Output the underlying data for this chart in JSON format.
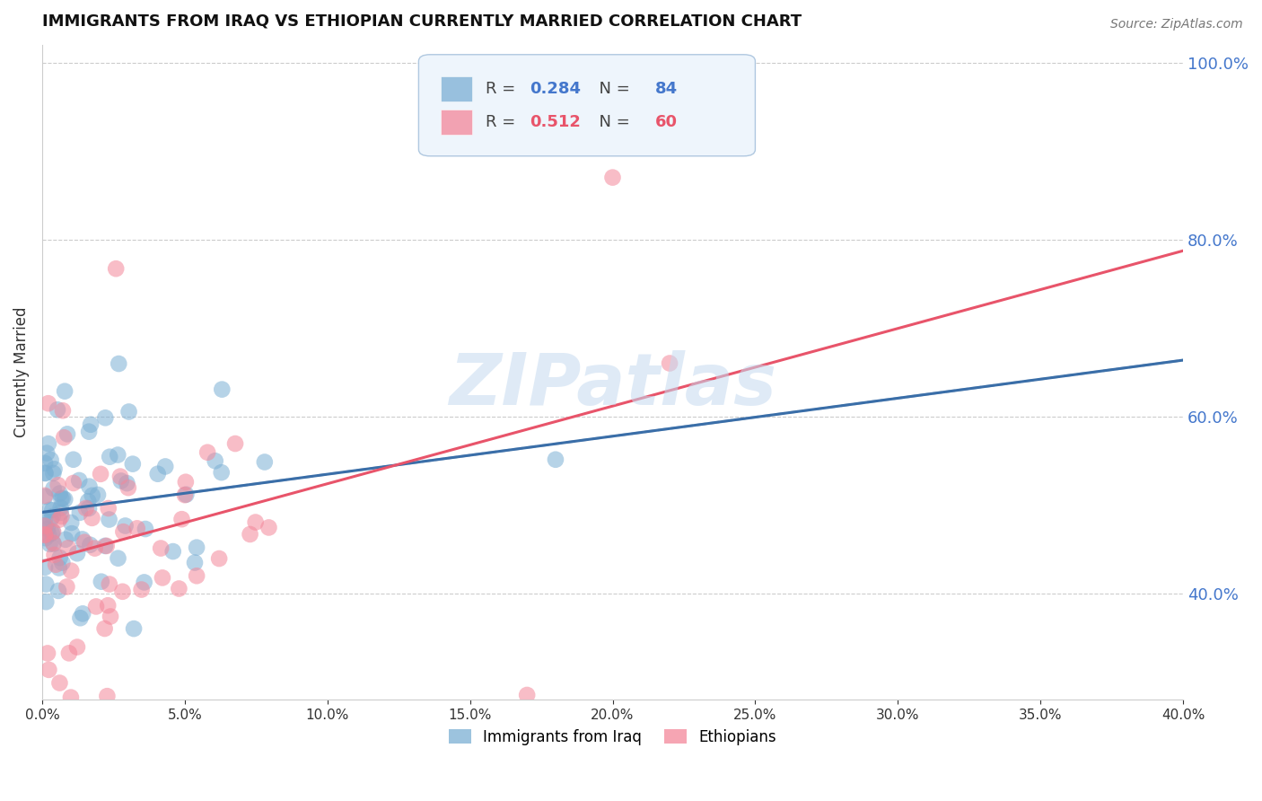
{
  "title": "IMMIGRANTS FROM IRAQ VS ETHIOPIAN CURRENTLY MARRIED CORRELATION CHART",
  "source": "Source: ZipAtlas.com",
  "ylabel": "Currently Married",
  "watermark": "ZIPatlas",
  "xlim": [
    0.0,
    0.4
  ],
  "ylim": [
    0.28,
    1.02
  ],
  "yticks": [
    0.4,
    0.6,
    0.8,
    1.0
  ],
  "xticks": [
    0.0,
    0.05,
    0.1,
    0.15,
    0.2,
    0.25,
    0.3,
    0.35,
    0.4
  ],
  "iraq_R": 0.284,
  "iraq_N": 84,
  "ethiopian_R": 0.512,
  "ethiopian_N": 60,
  "iraq_color": "#7bafd4",
  "ethiopian_color": "#f4879a",
  "iraq_line_color": "#3a6ea8",
  "ethiopian_line_color": "#e8546a",
  "dashed_line_color": "#aabfd4",
  "legend_box_color": "#eef5fc",
  "legend_border_color": "#b0c8e0",
  "iraq_color_text": "#4477CC",
  "ethiopian_color_text": "#e8546a"
}
